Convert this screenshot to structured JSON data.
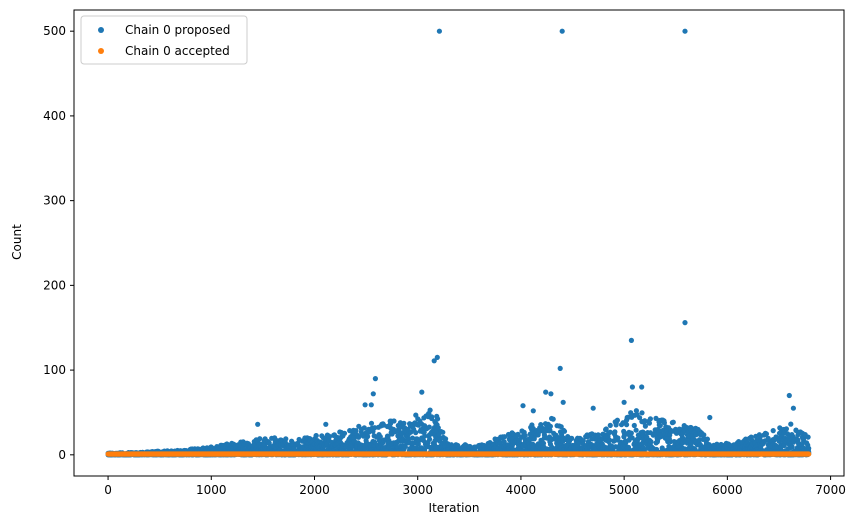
{
  "chart_data": {
    "type": "scatter",
    "title": "",
    "xlabel": "Iteration",
    "ylabel": "Count",
    "xlim": [
      -330,
      7130
    ],
    "ylim": [
      -25,
      525
    ],
    "xticks": [
      0,
      1000,
      2000,
      3000,
      4000,
      5000,
      6000,
      7000
    ],
    "yticks": [
      0,
      100,
      200,
      300,
      400,
      500
    ],
    "x_range": [
      0,
      6790
    ],
    "grid": false,
    "legend_position": "upper-left",
    "series": [
      {
        "name": "Chain 0 proposed",
        "color": "#1f77b4",
        "notable_points": [
          [
            3210,
            500
          ],
          [
            4400,
            500
          ],
          [
            5590,
            500
          ],
          [
            5590,
            156
          ],
          [
            5070,
            135
          ],
          [
            3190,
            115
          ],
          [
            3160,
            111
          ],
          [
            4380,
            102
          ],
          [
            2590,
            90
          ],
          [
            5080,
            80
          ],
          [
            5170,
            80
          ],
          [
            4240,
            74
          ],
          [
            4290,
            72
          ],
          [
            6600,
            70
          ],
          [
            3040,
            74
          ],
          [
            2570,
            72
          ],
          [
            5000,
            62
          ],
          [
            4410,
            62
          ],
          [
            4700,
            55
          ],
          [
            2550,
            59
          ],
          [
            2490,
            59
          ],
          [
            6640,
            55
          ],
          [
            5830,
            44
          ],
          [
            1450,
            36
          ],
          [
            2110,
            36
          ],
          [
            4020,
            58
          ],
          [
            4120,
            52
          ]
        ],
        "envelope": [
          [
            0,
            2
          ],
          [
            300,
            3
          ],
          [
            600,
            5
          ],
          [
            900,
            8
          ],
          [
            1200,
            14
          ],
          [
            1500,
            20
          ],
          [
            1800,
            20
          ],
          [
            2100,
            24
          ],
          [
            2400,
            33
          ],
          [
            2600,
            40
          ],
          [
            2900,
            44
          ],
          [
            3150,
            55
          ],
          [
            3300,
            12
          ],
          [
            3600,
            12
          ],
          [
            3800,
            22
          ],
          [
            4000,
            30
          ],
          [
            4300,
            45
          ],
          [
            4500,
            18
          ],
          [
            4800,
            30
          ],
          [
            5100,
            55
          ],
          [
            5400,
            40
          ],
          [
            5700,
            35
          ],
          [
            5850,
            12
          ],
          [
            6100,
            16
          ],
          [
            6400,
            28
          ],
          [
            6650,
            38
          ],
          [
            6790,
            20
          ]
        ]
      },
      {
        "name": "Chain 0 accepted",
        "color": "#ff7f0e",
        "constant_value": 1
      }
    ]
  }
}
